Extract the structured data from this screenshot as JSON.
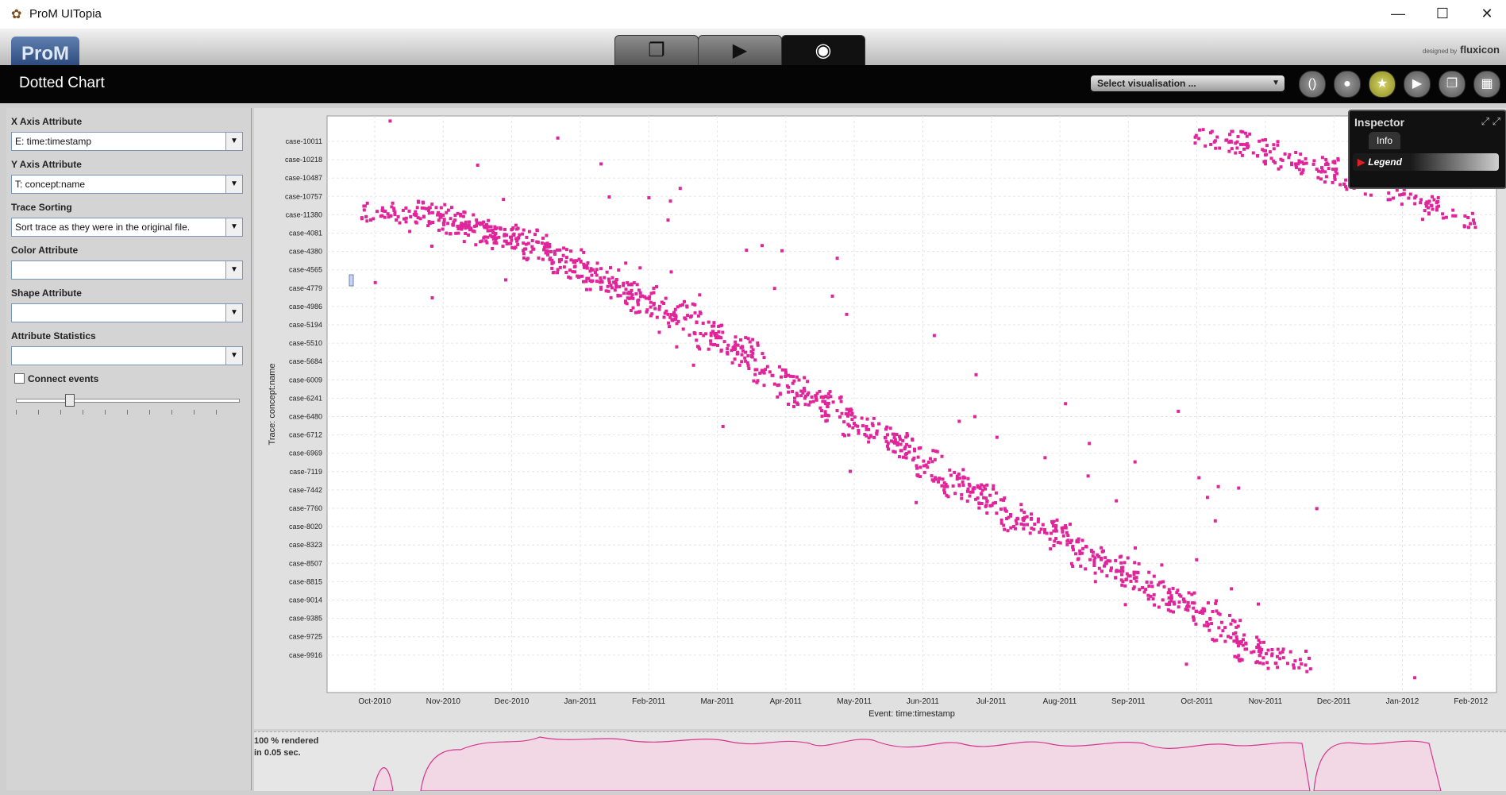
{
  "window": {
    "title": "ProM UITopia",
    "minimize": "—",
    "maximize": "☐",
    "close": "✕"
  },
  "header": {
    "logo": "ProM",
    "designed_by": "designed by",
    "brand": "fluxicon",
    "tabs": [
      {
        "icon": "workspace-icon",
        "glyph": "❐"
      },
      {
        "icon": "play-icon",
        "glyph": "▶"
      },
      {
        "icon": "eye-icon",
        "glyph": "◉"
      }
    ]
  },
  "toolbar": {
    "title": "Dotted Chart",
    "visualisation_select": "Select visualisation ...",
    "buttons": [
      {
        "icon": "parentheses-icon",
        "glyph": "()"
      },
      {
        "icon": "drop-icon",
        "glyph": "●"
      },
      {
        "icon": "star-icon",
        "glyph": "★"
      },
      {
        "icon": "play-icon",
        "glyph": "▶"
      },
      {
        "icon": "copy-icon",
        "glyph": "❐"
      },
      {
        "icon": "grid-icon",
        "glyph": "▦"
      }
    ]
  },
  "settings": {
    "x_axis_label": "X Axis Attribute",
    "x_axis_value": "E: time:timestamp",
    "y_axis_label": "Y Axis Attribute",
    "y_axis_value": "T: concept:name",
    "trace_sorting_label": "Trace Sorting",
    "trace_sorting_value": "Sort trace as they were in the original file.",
    "color_label": "Color Attribute",
    "color_value": "",
    "shape_label": "Shape Attribute",
    "shape_value": "",
    "stats_label": "Attribute Statistics",
    "stats_value": "",
    "connect_events": "Connect events",
    "connect_checked": false
  },
  "inspector": {
    "title": "Inspector",
    "tab": "Info",
    "legend": "Legend"
  },
  "status": {
    "line1": "100 % rendered",
    "line2": "in 0.05 sec."
  },
  "chart_data": {
    "type": "scatter",
    "title": "",
    "xlabel": "Event: time:timestamp",
    "ylabel": "Trace: concept:name",
    "x_ticks": [
      "Oct-2010",
      "Nov-2010",
      "Dec-2010",
      "Jan-2011",
      "Feb-2011",
      "Mar-2011",
      "Apr-2011",
      "May-2011",
      "Jun-2011",
      "Jul-2011",
      "Aug-2011",
      "Sep-2011",
      "Oct-2011",
      "Nov-2011",
      "Dec-2011",
      "Jan-2012",
      "Feb-2012"
    ],
    "y_ticks": [
      "case-10011",
      "case-10218",
      "case-10487",
      "case-10757",
      "case-11380",
      "case-4081",
      "case-4380",
      "case-4565",
      "case-4779",
      "case-4986",
      "case-5194",
      "case-5510",
      "case-5684",
      "case-6009",
      "case-6241",
      "case-6480",
      "case-6712",
      "case-6969",
      "case-7119",
      "case-7442",
      "case-7760",
      "case-8020",
      "case-8323",
      "case-8507",
      "case-8815",
      "case-9014",
      "case-9385",
      "case-9725",
      "case-9916"
    ],
    "color": "#e0249a",
    "grid": true,
    "series": [
      {
        "x": [
          "2010-10-05",
          "2010-10-20",
          "2010-10-30",
          "2010-11-05",
          "2010-11-12",
          "2010-11-20",
          "2010-11-28",
          "2010-12-05",
          "2010-12-12",
          "2010-12-20",
          "2010-12-28",
          "2011-01-05",
          "2011-01-14",
          "2011-01-22",
          "2011-02-01",
          "2011-02-10",
          "2011-02-20",
          "2011-03-01",
          "2011-03-10",
          "2011-03-20",
          "2011-03-30",
          "2011-04-08",
          "2011-04-18",
          "2011-04-28",
          "2011-05-08",
          "2011-05-18",
          "2011-05-28",
          "2011-06-08",
          "2011-06-18",
          "2011-06-28",
          "2011-07-08",
          "2011-07-18",
          "2011-07-28",
          "2011-08-08",
          "2011-08-18",
          "2011-08-28",
          "2011-09-08",
          "2011-09-18",
          "2011-09-28",
          "2011-10-08",
          "2011-10-18",
          "2011-10-28",
          "2011-11-08",
          "2011-10-12",
          "2011-10-25",
          "2011-11-08",
          "2011-11-22",
          "2011-12-05",
          "2011-12-20",
          "2012-01-05",
          "2012-01-20"
        ],
        "y": [
          "case-11380",
          "case-11380",
          "case-11380",
          "case-11380",
          "case-4081",
          "case-4081",
          "case-4081",
          "case-4081",
          "case-4380",
          "case-4380",
          "case-4565",
          "case-4565",
          "case-4779",
          "case-4779",
          "case-4986",
          "case-4986",
          "case-5194",
          "case-5510",
          "case-5510",
          "case-5684",
          "case-6009",
          "case-6241",
          "case-6241",
          "case-6480",
          "case-6712",
          "case-6712",
          "case-6969",
          "case-7119",
          "case-7442",
          "case-7442",
          "case-7760",
          "case-8020",
          "case-8020",
          "case-8323",
          "case-8507",
          "case-8507",
          "case-8815",
          "case-9014",
          "case-9014",
          "case-9385",
          "case-9725",
          "case-9916",
          "case-9916",
          "case-10011",
          "case-10011",
          "case-10218",
          "case-10218",
          "case-10487",
          "case-10487",
          "case-10757",
          "case-11380"
        ]
      }
    ]
  }
}
